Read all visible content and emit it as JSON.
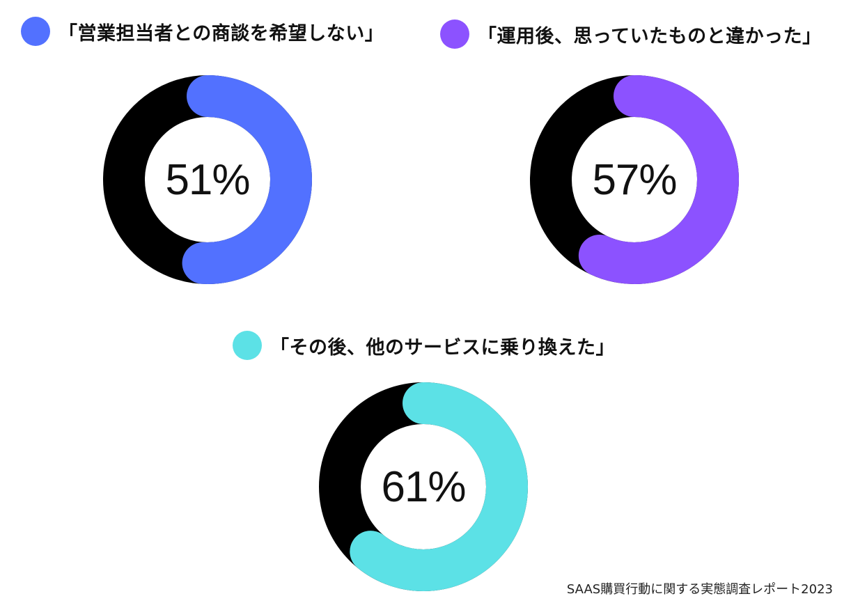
{
  "chart_data": [
    {
      "type": "pie",
      "title": "「営業担当者との商談を希望しない」",
      "value_label": "51%",
      "values": [
        51,
        49
      ],
      "colors": [
        "#5271ff",
        "#000000"
      ]
    },
    {
      "type": "pie",
      "title": "「運用後、思っていたものと違かった」",
      "value_label": "57%",
      "values": [
        57,
        43
      ],
      "colors": [
        "#8c52ff",
        "#000000"
      ]
    },
    {
      "type": "pie",
      "title": "「その後、他のサービスに乗り換えた」",
      "value_label": "61%",
      "values": [
        61,
        39
      ],
      "colors": [
        "#5ce1e6",
        "#000000"
      ]
    }
  ],
  "source": "SAAS購買行動に関する実態調査レポート2023"
}
